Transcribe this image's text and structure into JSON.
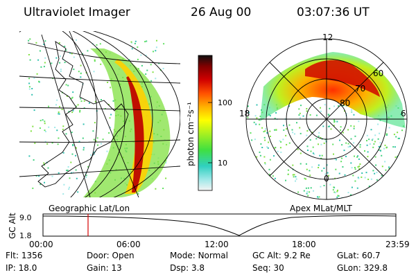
{
  "header": {
    "instrument": "Ultraviolet Imager",
    "date": "26 Aug 00",
    "time": "03:07:36 UT"
  },
  "colorbar": {
    "label": "photon cm⁻²s⁻¹",
    "ticks": [
      "100",
      "10"
    ]
  },
  "left_panel": {
    "label": "Geographic Lat/Lon"
  },
  "right_panel": {
    "label": "Apex MLat/MLT",
    "mlt_labels": {
      "top": "12",
      "left": "18",
      "right": "6",
      "bottom": "0"
    },
    "lat_labels": [
      "60",
      "70",
      "80"
    ]
  },
  "altitude_plot": {
    "ylabel": "GC Alt",
    "yticks": [
      "9.0",
      "1.8"
    ],
    "xticks": [
      "00:00",
      "06:00",
      "12:00",
      "18:00",
      "23:59"
    ],
    "marker_time_hours": 3.13
  },
  "info": {
    "row1": [
      {
        "label": "Flt:",
        "value": "1356"
      },
      {
        "label": "Door:",
        "value": "Open"
      },
      {
        "label": "Mode:",
        "value": "Normal"
      },
      {
        "label": "GC Alt:",
        "value": "9.2 Re"
      },
      {
        "label": "GLat:",
        "value": "60.7"
      }
    ],
    "row2": [
      {
        "label": "IP:",
        "value": "18.0"
      },
      {
        "label": "Gain:",
        "value": "13"
      },
      {
        "label": "Dsp:",
        "value": "3.8"
      },
      {
        "label": "Seq:",
        "value": "30"
      },
      {
        "label": "GLon:",
        "value": "329.8"
      }
    ]
  },
  "colors": {
    "marker": "#d40000",
    "colorbar": [
      "#ffffff",
      "#30d0c0",
      "#40e040",
      "#c0f020",
      "#ffff00",
      "#ffa000",
      "#ff2000",
      "#c00000",
      "#600000",
      "#101010"
    ]
  }
}
